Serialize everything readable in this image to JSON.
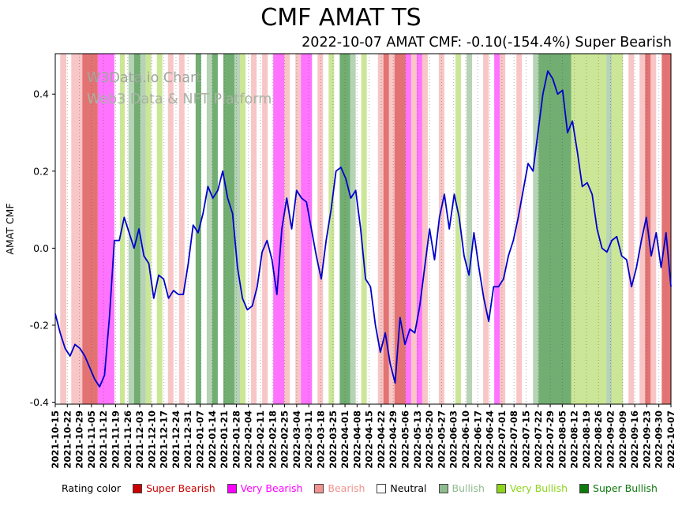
{
  "watermark": {
    "line1": "W3Data.io Chart",
    "line2": "Web3 Data & NFT Platform"
  },
  "chart_data": {
    "type": "line",
    "title": "CMF AMAT TS",
    "subtitle": "2022-10-07 AMAT CMF: -0.10(-154.4%) Super Bearish",
    "ylabel": "AMAT CMF",
    "xlabel": "",
    "ylim": [
      -0.405,
      0.505
    ],
    "ytick_labels": [
      "-0.4",
      "-0.2",
      "0.0",
      "0.2",
      "0.4"
    ],
    "grid": "vertical-dotted",
    "line_color": "#0000cd",
    "x_tick_labels": [
      "2021-10-15",
      "2021-10-22",
      "2021-10-29",
      "2021-11-05",
      "2021-11-12",
      "2021-11-19",
      "2021-11-26",
      "2021-12-03",
      "2021-12-10",
      "2021-12-17",
      "2021-12-24",
      "2021-12-31",
      "2022-01-07",
      "2022-01-14",
      "2022-01-21",
      "2022-01-28",
      "2022-02-04",
      "2022-02-11",
      "2022-02-18",
      "2022-02-25",
      "2022-03-04",
      "2022-03-11",
      "2022-03-18",
      "2022-03-25",
      "2022-04-01",
      "2022-04-08",
      "2022-04-15",
      "2022-04-22",
      "2022-04-29",
      "2022-05-06",
      "2022-05-13",
      "2022-05-20",
      "2022-05-27",
      "2022-06-03",
      "2022-06-10",
      "2022-06-17",
      "2022-06-24",
      "2022-07-01",
      "2022-07-08",
      "2022-07-15",
      "2022-07-22",
      "2022-07-29",
      "2022-08-05",
      "2022-08-12",
      "2022-08-19",
      "2022-08-26",
      "2022-09-02",
      "2022-09-09",
      "2022-09-16",
      "2022-09-23",
      "2022-09-30",
      "2022-10-07"
    ],
    "series": [
      {
        "name": "AMAT CMF",
        "values": [
          -0.17,
          -0.22,
          -0.26,
          -0.28,
          -0.25,
          -0.26,
          -0.28,
          -0.31,
          -0.34,
          -0.36,
          -0.33,
          -0.18,
          0.02,
          0.02,
          0.08,
          0.04,
          0.0,
          0.05,
          -0.02,
          -0.04,
          -0.13,
          -0.07,
          -0.08,
          -0.13,
          -0.11,
          -0.12,
          -0.12,
          -0.04,
          0.06,
          0.04,
          0.09,
          0.16,
          0.13,
          0.15,
          0.2,
          0.13,
          0.09,
          -0.05,
          -0.13,
          -0.16,
          -0.15,
          -0.1,
          -0.01,
          0.02,
          -0.03,
          -0.12,
          0.05,
          0.13,
          0.05,
          0.15,
          0.13,
          0.12,
          0.05,
          -0.02,
          -0.08,
          0.02,
          0.1,
          0.2,
          0.21,
          0.18,
          0.13,
          0.15,
          0.05,
          -0.08,
          -0.1,
          -0.2,
          -0.27,
          -0.22,
          -0.3,
          -0.35,
          -0.18,
          -0.25,
          -0.21,
          -0.22,
          -0.15,
          -0.05,
          0.05,
          -0.03,
          0.08,
          0.14,
          0.05,
          0.14,
          0.08,
          -0.02,
          -0.07,
          0.04,
          -0.05,
          -0.13,
          -0.19,
          -0.1,
          -0.1,
          -0.08,
          -0.02,
          0.02,
          0.08,
          0.15,
          0.22,
          0.2,
          0.3,
          0.4,
          0.46,
          0.44,
          0.4,
          0.41,
          0.3,
          0.33,
          0.25,
          0.16,
          0.17,
          0.14,
          0.05,
          0.0,
          -0.01,
          0.02,
          0.03,
          -0.02,
          -0.03,
          -0.1,
          -0.05,
          0.02,
          0.08,
          -0.02,
          0.04,
          -0.05,
          0.04,
          -0.1
        ]
      }
    ],
    "band_colors": {
      "super_bearish": "rgba(204,0,0,0.55)",
      "very_bearish": "rgba(255,0,255,0.55)",
      "bearish": "rgba(240,128,128,0.45)",
      "bullish": "rgba(143,188,143,0.65)",
      "very_bullish": "rgba(154,205,50,0.5)",
      "super_bullish": "rgba(20,120,20,0.6)"
    },
    "bands": [
      {
        "s": 0.008,
        "e": 0.018,
        "r": "bearish"
      },
      {
        "s": 0.026,
        "e": 0.044,
        "r": "bearish"
      },
      {
        "s": 0.044,
        "e": 0.069,
        "r": "super_bearish"
      },
      {
        "s": 0.069,
        "e": 0.096,
        "r": "very_bearish"
      },
      {
        "s": 0.105,
        "e": 0.113,
        "r": "very_bullish"
      },
      {
        "s": 0.119,
        "e": 0.128,
        "r": "bullish"
      },
      {
        "s": 0.128,
        "e": 0.138,
        "r": "super_bullish"
      },
      {
        "s": 0.138,
        "e": 0.147,
        "r": "bullish"
      },
      {
        "s": 0.147,
        "e": 0.156,
        "r": "very_bullish"
      },
      {
        "s": 0.165,
        "e": 0.174,
        "r": "very_bullish"
      },
      {
        "s": 0.183,
        "e": 0.192,
        "r": "bearish"
      },
      {
        "s": 0.201,
        "e": 0.21,
        "r": "bearish"
      },
      {
        "s": 0.228,
        "e": 0.237,
        "r": "super_bullish"
      },
      {
        "s": 0.246,
        "e": 0.255,
        "r": "bullish"
      },
      {
        "s": 0.255,
        "e": 0.264,
        "r": "super_bullish"
      },
      {
        "s": 0.273,
        "e": 0.291,
        "r": "super_bullish"
      },
      {
        "s": 0.291,
        "e": 0.3,
        "r": "bullish"
      },
      {
        "s": 0.3,
        "e": 0.309,
        "r": "very_bullish"
      },
      {
        "s": 0.318,
        "e": 0.327,
        "r": "bearish"
      },
      {
        "s": 0.336,
        "e": 0.345,
        "r": "bearish"
      },
      {
        "s": 0.354,
        "e": 0.372,
        "r": "very_bearish"
      },
      {
        "s": 0.372,
        "e": 0.381,
        "r": "bearish"
      },
      {
        "s": 0.39,
        "e": 0.399,
        "r": "bearish"
      },
      {
        "s": 0.399,
        "e": 0.417,
        "r": "very_bearish"
      },
      {
        "s": 0.426,
        "e": 0.435,
        "r": "bearish"
      },
      {
        "s": 0.444,
        "e": 0.453,
        "r": "very_bullish"
      },
      {
        "s": 0.462,
        "e": 0.479,
        "r": "super_bullish"
      },
      {
        "s": 0.479,
        "e": 0.488,
        "r": "bullish"
      },
      {
        "s": 0.497,
        "e": 0.506,
        "r": "very_bullish"
      },
      {
        "s": 0.524,
        "e": 0.533,
        "r": "bearish"
      },
      {
        "s": 0.533,
        "e": 0.542,
        "r": "super_bearish"
      },
      {
        "s": 0.542,
        "e": 0.551,
        "r": "bearish"
      },
      {
        "s": 0.551,
        "e": 0.569,
        "r": "super_bearish"
      },
      {
        "s": 0.569,
        "e": 0.578,
        "r": "very_bearish"
      },
      {
        "s": 0.578,
        "e": 0.587,
        "r": "bearish"
      },
      {
        "s": 0.587,
        "e": 0.596,
        "r": "very_bearish"
      },
      {
        "s": 0.596,
        "e": 0.605,
        "r": "bearish"
      },
      {
        "s": 0.623,
        "e": 0.632,
        "r": "bearish"
      },
      {
        "s": 0.65,
        "e": 0.659,
        "r": "very_bullish"
      },
      {
        "s": 0.668,
        "e": 0.677,
        "r": "bullish"
      },
      {
        "s": 0.695,
        "e": 0.704,
        "r": "bearish"
      },
      {
        "s": 0.713,
        "e": 0.722,
        "r": "very_bearish"
      },
      {
        "s": 0.722,
        "e": 0.731,
        "r": "bearish"
      },
      {
        "s": 0.749,
        "e": 0.758,
        "r": "bearish"
      },
      {
        "s": 0.776,
        "e": 0.785,
        "r": "bullish"
      },
      {
        "s": 0.785,
        "e": 0.838,
        "r": "super_bullish"
      },
      {
        "s": 0.838,
        "e": 0.895,
        "r": "very_bullish"
      },
      {
        "s": 0.895,
        "e": 0.904,
        "r": "bullish"
      },
      {
        "s": 0.904,
        "e": 0.922,
        "r": "very_bullish"
      },
      {
        "s": 0.931,
        "e": 0.94,
        "r": "bearish"
      },
      {
        "s": 0.949,
        "e": 0.958,
        "r": "bearish"
      },
      {
        "s": 0.958,
        "e": 0.967,
        "r": "super_bearish"
      },
      {
        "s": 0.967,
        "e": 0.976,
        "r": "bearish"
      },
      {
        "s": 0.985,
        "e": 1.0,
        "r": "super_bearish"
      }
    ],
    "legend": {
      "label": "Rating color",
      "items": [
        {
          "key": "super_bearish",
          "label": "Super Bearish",
          "color": "#cc0000"
        },
        {
          "key": "very_bearish",
          "label": "Very Bearish",
          "color": "#ff00ff"
        },
        {
          "key": "bearish",
          "label": "Bearish",
          "color": "#f2928e"
        },
        {
          "key": "neutral",
          "label": "Neutral",
          "color": "#ffffff",
          "text": "#000000"
        },
        {
          "key": "bullish",
          "label": "Bullish",
          "color": "#8fbc8f"
        },
        {
          "key": "very_bullish",
          "label": "Very Bullish",
          "color": "#8ed41c"
        },
        {
          "key": "super_bullish",
          "label": "Super Bullish",
          "color": "#0e7a0e"
        }
      ]
    }
  }
}
